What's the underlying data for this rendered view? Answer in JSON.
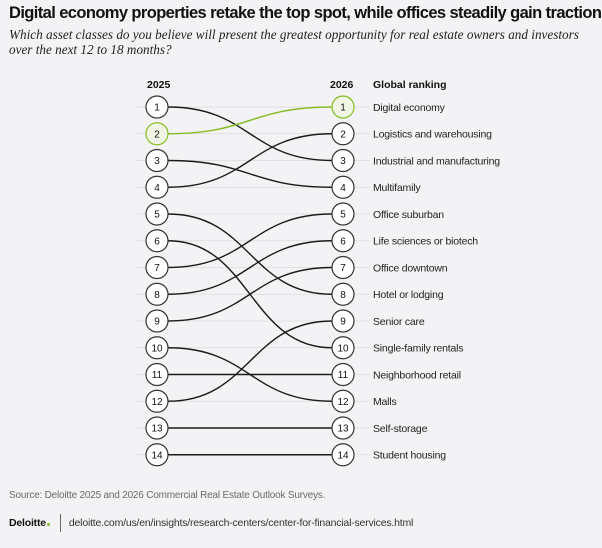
{
  "title": "Digital economy properties retake the top spot, while offices steadily gain traction",
  "subtitle": "Which asset classes do you believe will present the greatest opportunity for real estate owners and investors over the next 12 to 18 months?",
  "colors": {
    "highlight": "#86bc25",
    "highlight_fill": "#f1f6e4",
    "line": "#1a1a1a",
    "grid": "#dcdcdf",
    "circle_fill": "#ffffff",
    "circle_stroke": "#333333"
  },
  "chart_data": {
    "type": "slope",
    "title": "Digital economy properties retake the top spot, while offices steadily gain traction",
    "left_header": "2025",
    "right_header": "2026",
    "labels_header": "Global ranking",
    "highlight": "Digital economy",
    "series": [
      {
        "name": "Digital economy",
        "rank_2025": 2,
        "rank_2026": 1
      },
      {
        "name": "Logistics and warehousing",
        "rank_2025": 4,
        "rank_2026": 2
      },
      {
        "name": "Industrial and manufacturing",
        "rank_2025": 1,
        "rank_2026": 3
      },
      {
        "name": "Multifamily",
        "rank_2025": 3,
        "rank_2026": 4
      },
      {
        "name": "Office suburban",
        "rank_2025": 7,
        "rank_2026": 5
      },
      {
        "name": "Life sciences or biotech",
        "rank_2025": 8,
        "rank_2026": 6
      },
      {
        "name": "Office downtown",
        "rank_2025": 9,
        "rank_2026": 7
      },
      {
        "name": "Hotel or lodging",
        "rank_2025": 5,
        "rank_2026": 8
      },
      {
        "name": "Senior care",
        "rank_2025": 12,
        "rank_2026": 9
      },
      {
        "name": "Single-family rentals",
        "rank_2025": 6,
        "rank_2026": 10
      },
      {
        "name": "Neighborhood retail",
        "rank_2025": 11,
        "rank_2026": 11
      },
      {
        "name": "Malls",
        "rank_2025": 10,
        "rank_2026": 12
      },
      {
        "name": "Self-storage",
        "rank_2025": 13,
        "rank_2026": 13
      },
      {
        "name": "Student housing",
        "rank_2025": 14,
        "rank_2026": 14
      }
    ],
    "ranks": [
      "1",
      "2",
      "3",
      "4",
      "5",
      "6",
      "7",
      "8",
      "9",
      "10",
      "11",
      "12",
      "13",
      "14"
    ]
  },
  "source": "Source: Deloitte 2025 and 2026 Commercial Real Estate Outlook Surveys.",
  "footer": {
    "logo": "Deloitte",
    "url": "deloitte.com/us/en/insights/research-centers/center-for-financial-services.html"
  }
}
